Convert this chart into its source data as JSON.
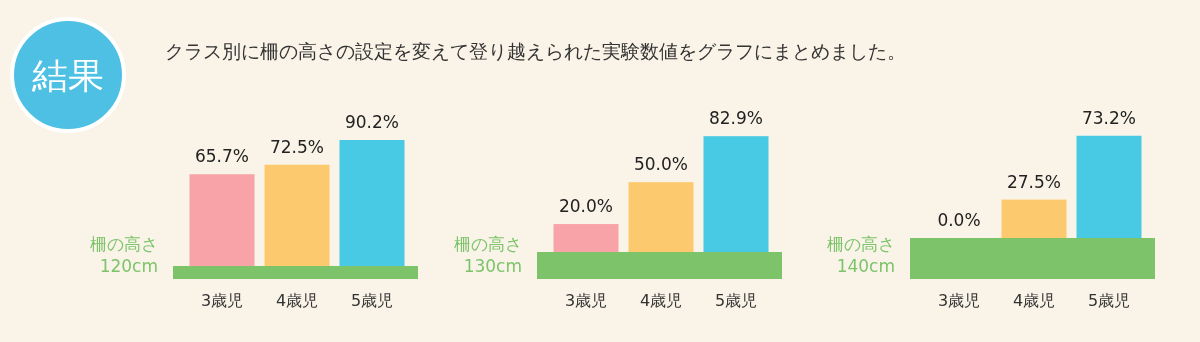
{
  "chart_data": [
    {
      "type": "bar",
      "title": "結果",
      "subtitle": "クラス別に柵の高さの設定を変えて登り越えられた実験数値をグラフにまとめました。",
      "ylabel": "柵の高さ 120cm",
      "categories": [
        "3歳児",
        "4歳児",
        "5歳児"
      ],
      "values": [
        65.7,
        72.5,
        90.2
      ],
      "value_labels": [
        "65.7%",
        "72.5%",
        "90.2%"
      ],
      "colors": [
        "#f8a3a8",
        "#fdc96e",
        "#48cae4"
      ]
    },
    {
      "type": "bar",
      "ylabel": "柵の高さ 130cm",
      "categories": [
        "3歳児",
        "4歳児",
        "5歳児"
      ],
      "values": [
        20.0,
        50.0,
        82.9
      ],
      "value_labels": [
        "20.0%",
        "50.0%",
        "82.9%"
      ],
      "colors": [
        "#f8a3a8",
        "#fdc96e",
        "#48cae4"
      ]
    },
    {
      "type": "bar",
      "ylabel": "柵の高さ 140cm",
      "categories": [
        "3歳児",
        "4歳児",
        "5歳児"
      ],
      "values": [
        0.0,
        27.5,
        73.2
      ],
      "value_labels": [
        "0.0%",
        "27.5%",
        "73.2%"
      ],
      "colors": [
        "#f8a3a8",
        "#fdc96e",
        "#48cae4"
      ]
    }
  ]
}
